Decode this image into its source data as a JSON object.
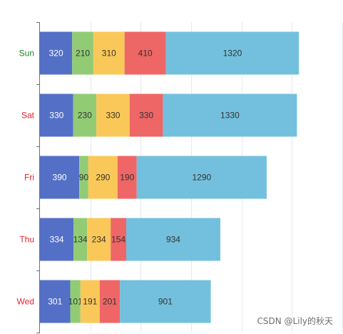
{
  "chart_data": {
    "type": "bar",
    "orientation": "horizontal",
    "stacked": true,
    "categories": [
      "Wed",
      "Thu",
      "Fri",
      "Sat",
      "Sun"
    ],
    "category_colors": {
      "Wed": "#e8232d",
      "Thu": "#e8232d",
      "Fri": "#e8232d",
      "Sat": "#e8232d",
      "Sun": "#1a8a1a"
    },
    "series": [
      {
        "color": "#5470c6",
        "label_color": "#ffffff",
        "values": [
          301,
          334,
          390,
          330,
          320
        ]
      },
      {
        "color": "#91cc75",
        "label_color": "#333333",
        "values": [
          101,
          134,
          90,
          230,
          210
        ]
      },
      {
        "color": "#fac858",
        "label_color": "#333333",
        "values": [
          191,
          234,
          290,
          330,
          310
        ]
      },
      {
        "color": "#ee6666",
        "label_color": "#333333",
        "values": [
          201,
          154,
          190,
          330,
          410
        ]
      },
      {
        "color": "#73c0de",
        "label_color": "#333333",
        "values": [
          901,
          934,
          1290,
          1330,
          1320
        ]
      }
    ],
    "xlim": [
      0,
      3000
    ],
    "x_gridlines": [
      500,
      1000,
      1500,
      2000,
      2500,
      3000
    ],
    "grid": true,
    "x_tick_labels_visible": false,
    "legend": "none",
    "title": "",
    "xlabel": "",
    "ylabel": ""
  },
  "watermark": "CSDN @Lily的秋天"
}
